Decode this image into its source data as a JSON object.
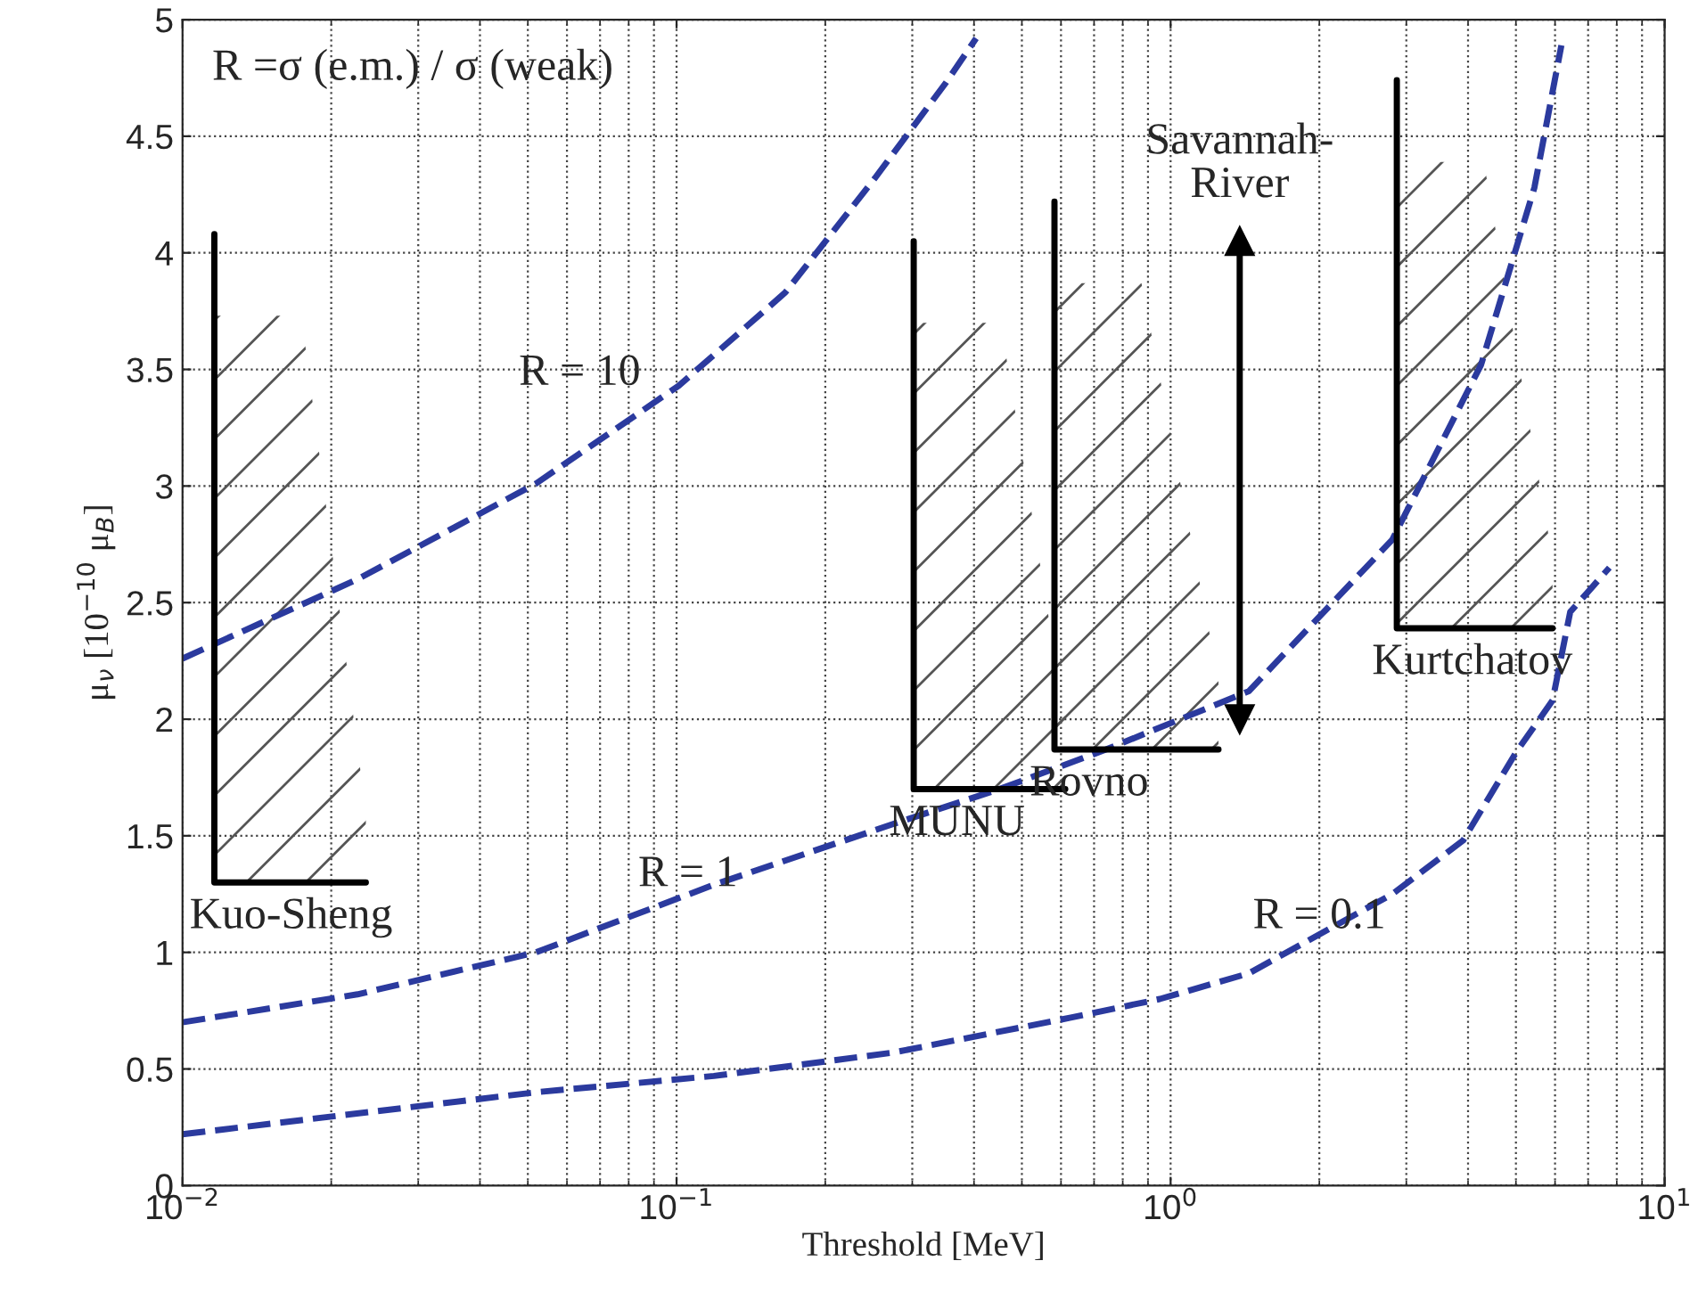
{
  "chart_data": {
    "type": "line",
    "xlabel": "Threshold [MeV]",
    "ylabel": "μ$_{ν}$ [10$^{−10}$ μ$_{B}$]",
    "log": "x",
    "grid": true,
    "xlim": [
      0.01,
      10
    ],
    "xticks": [
      {
        "value": 0.01,
        "label": "10$^{−2}$"
      },
      {
        "value": 0.1,
        "label": "10$^{−1}$"
      },
      {
        "value": 1,
        "label": "10$^{0}$"
      },
      {
        "value": 10,
        "label": "10$^{1}$"
      }
    ],
    "ylim": [
      0,
      5
    ],
    "yticks": [
      0,
      0.5,
      1,
      1.5,
      2,
      2.5,
      3,
      3.5,
      4,
      4.5,
      5
    ],
    "series": [
      {
        "name": "R = 10",
        "color": "#2b3a9e",
        "line_style": "dashed",
        "x": [
          0.01,
          0.0226,
          0.0519,
          0.101,
          0.166,
          0.252,
          0.351,
          0.404
        ],
        "values": [
          2.26,
          2.6,
          3.01,
          3.43,
          3.83,
          4.32,
          4.73,
          4.92
        ]
      },
      {
        "name": "R = 1",
        "color": "#2b3a9e",
        "line_style": "dashed",
        "x": [
          0.01,
          0.0226,
          0.0519,
          0.119,
          0.274,
          0.45,
          0.74,
          1.44,
          2.81,
          4.25,
          5.45,
          6.18
        ],
        "values": [
          0.7,
          0.82,
          1.0,
          1.29,
          1.55,
          1.7,
          1.87,
          2.12,
          2.77,
          3.52,
          4.28,
          4.89
        ]
      },
      {
        "name": "R = 0.1",
        "color": "#2b3a9e",
        "line_style": "dashed",
        "x": [
          0.01,
          0.0519,
          0.119,
          0.274,
          0.628,
          0.951,
          1.44,
          2.81,
          3.91,
          5.01,
          5.93,
          6.44,
          7.73
        ],
        "values": [
          0.22,
          0.4,
          0.47,
          0.57,
          0.72,
          0.8,
          0.91,
          1.25,
          1.48,
          1.86,
          2.08,
          2.46,
          2.65
        ]
      },
      {
        "name": "Kuo-Sheng",
        "color": "#000000",
        "line_style": "solid",
        "x": [
          0.0116,
          0.0116,
          0.0235
        ],
        "values": [
          4.08,
          1.3,
          1.3
        ]
      },
      {
        "name": "MUNU",
        "color": "#000000",
        "line_style": "solid",
        "x": [
          0.302,
          0.302,
          0.612
        ],
        "values": [
          4.05,
          1.7,
          1.7
        ]
      },
      {
        "name": "Rovno",
        "color": "#000000",
        "line_style": "solid",
        "x": [
          0.582,
          0.582,
          1.25
        ],
        "values": [
          4.22,
          1.87,
          1.87
        ]
      },
      {
        "name": "Kurtchatov",
        "color": "#000000",
        "line_style": "solid",
        "x": [
          2.87,
          2.87,
          5.93
        ],
        "values": [
          4.74,
          2.39,
          2.39
        ]
      },
      {
        "name": "Savannah-\nRiver",
        "color": "#000000",
        "line_style": "solid",
        "marker": "triangle",
        "x": [
          1.38,
          1.38
        ],
        "values": [
          2.0,
          4.05
        ]
      }
    ],
    "annotations": [
      "R =σ (e.m.) / σ (weak)"
    ]
  }
}
